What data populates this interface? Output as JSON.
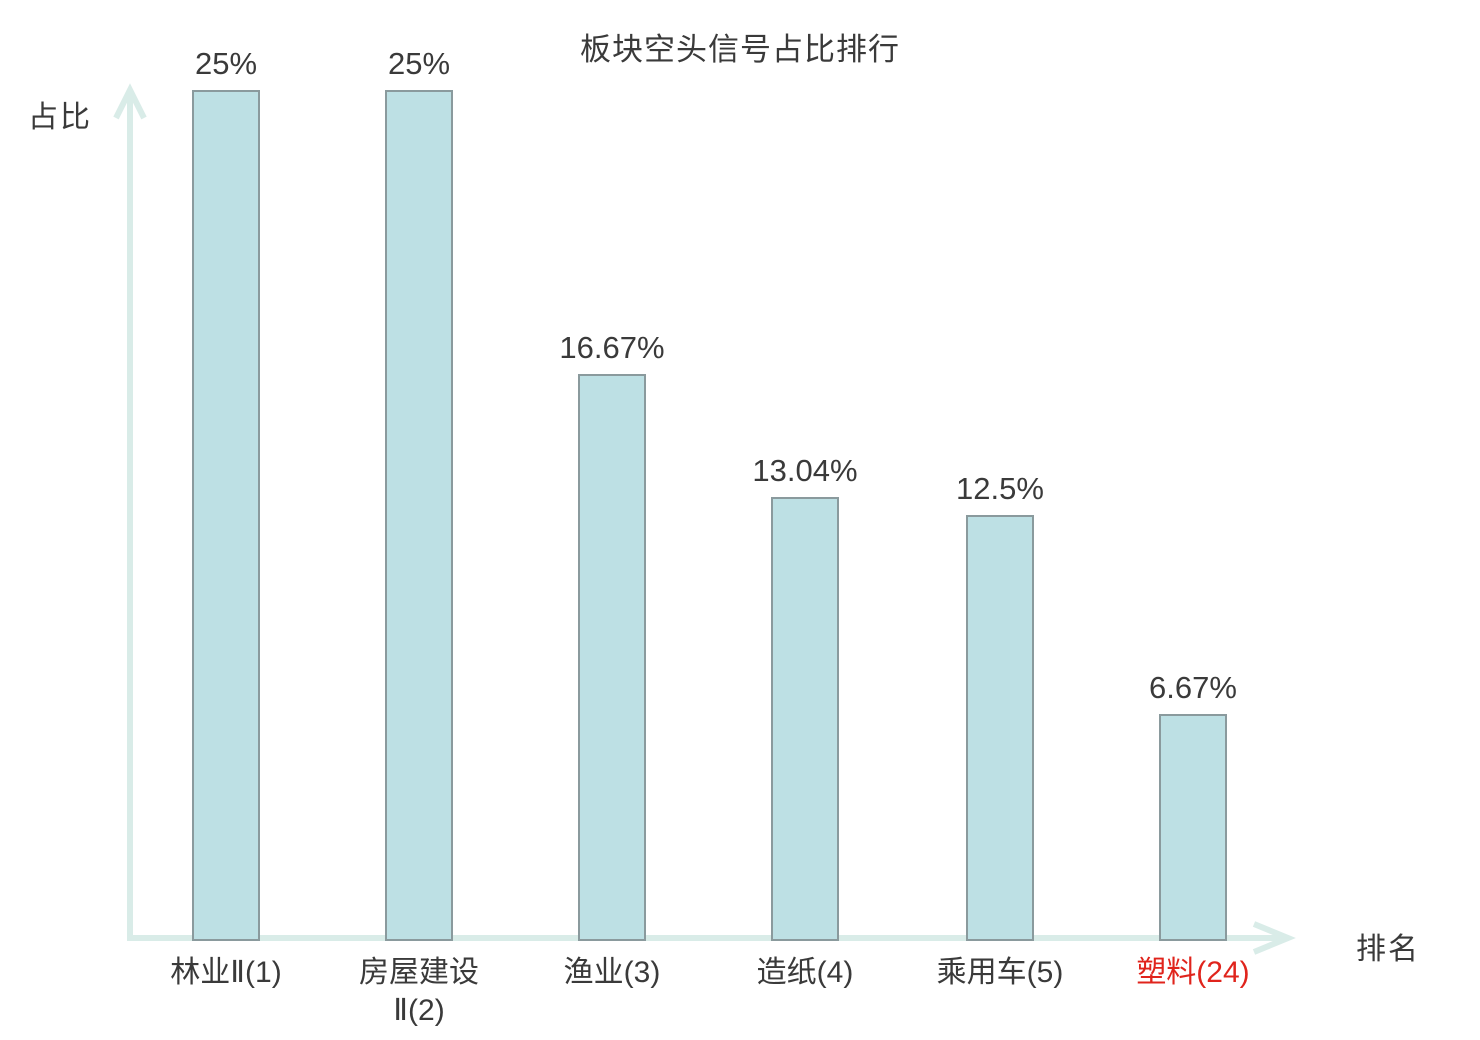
{
  "title": "板块空头信号占比排行",
  "axes": {
    "y_label": "占比",
    "x_label": "排名"
  },
  "colors": {
    "bar_fill": "#bde0e4",
    "bar_border": "#8a9a9d",
    "axis": "#d9ece8",
    "text": "#3a3a3a",
    "highlight": "#e0241c"
  },
  "chart_data": {
    "type": "bar",
    "title": "板块空头信号占比排行",
    "xlabel": "排名",
    "ylabel": "占比",
    "ylim": [
      0,
      25
    ],
    "grid": false,
    "legend": false,
    "categories": [
      "林业Ⅱ(1)",
      "房屋建设\nⅡ(2)",
      "渔业(3)",
      "造纸(4)",
      "乘用车(5)",
      "塑料(24)"
    ],
    "values": [
      25,
      25,
      16.67,
      13.04,
      12.5,
      6.67
    ],
    "value_labels": [
      "25%",
      "25%",
      "16.67%",
      "13.04%",
      "12.5%",
      "6.67%"
    ],
    "category_colors": [
      "#3a3a3a",
      "#3a3a3a",
      "#3a3a3a",
      "#3a3a3a",
      "#3a3a3a",
      "#e0241c"
    ],
    "highlighted_category_index": 5,
    "highlighted_category": "塑料(24)"
  }
}
